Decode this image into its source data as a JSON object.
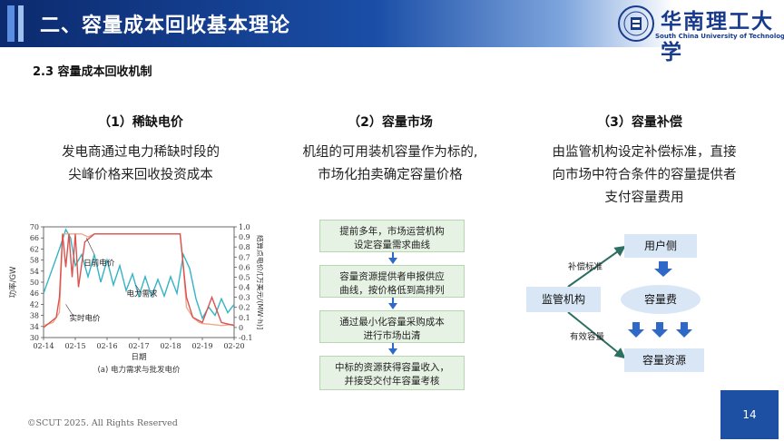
{
  "header": {
    "title": "二、容量成本回收基本理论",
    "logo_cn": "华南理工大学",
    "logo_en": "South China University of Technology"
  },
  "section_title": "2.3 容量成本回收机制",
  "columns": [
    {
      "heading": "（1）稀缺电价",
      "lines": [
        "发电商通过电力稀缺时段的",
        "尖峰价格来回收投资成本"
      ]
    },
    {
      "heading": "（2）容量市场",
      "lines": [
        "机组的可用装机容量作为标的,",
        "市场化拍卖确定容量价格"
      ]
    },
    {
      "heading": "（3）容量补偿",
      "lines": [
        "由监管机构设定补偿标准，直接",
        "向市场中符合条件的容量提供者",
        "支付容量费用"
      ]
    }
  ],
  "flow_steps": [
    [
      "提前多年，市场运营机构",
      "设定容量需求曲线"
    ],
    [
      "容量资源提供者申报供应",
      "曲线，按价格低到高排列"
    ],
    [
      "通过最小化容量采购成本",
      "进行市场出清"
    ],
    [
      "中标的资源获得容量收入，",
      "并接受交付年容量考核"
    ]
  ],
  "compensation": {
    "regulator": "监管机构",
    "user_side": "用户侧",
    "capacity_fee": "容量费",
    "capacity_resource": "容量资源",
    "label_standard": "补偿标准",
    "label_capacity": "有效容量"
  },
  "chart_data": {
    "type": "line",
    "x_ticks": [
      "02-14",
      "02-15",
      "02-16",
      "02-17",
      "02-18",
      "02-19",
      "02-20"
    ],
    "xlabel": "日期",
    "ylabel_left": "功率/GW",
    "ylabel_right": "结算点电价/[万美元/(MW·h)]",
    "y_left_ticks": [
      30,
      34,
      38,
      42,
      46,
      50,
      54,
      58,
      62,
      66,
      70
    ],
    "ylim_left": [
      30,
      70
    ],
    "y_right_ticks": [
      "-0.1",
      "0",
      "0.1",
      "0.2",
      "0.3",
      "0.4",
      "0.5",
      "0.6",
      "0.7",
      "0.8",
      "0.9",
      "1.0"
    ],
    "ylim_right": [
      -0.1,
      1.0
    ],
    "caption": "(a) 电力需求与批发电价",
    "annotations": [
      "日前电价",
      "电力需求",
      "实时电价"
    ],
    "series": [
      {
        "name": "电力需求",
        "color": "#35b3c4",
        "axis": "left",
        "x": [
          0,
          0.25,
          0.5,
          0.7,
          0.85,
          1.0,
          1.2,
          1.4,
          1.6,
          1.8,
          2.0,
          2.2,
          2.4,
          2.6,
          2.8,
          3.0,
          3.2,
          3.4,
          3.6,
          3.8,
          4.0,
          4.2,
          4.4,
          4.6,
          4.8,
          5.0,
          5.2,
          5.4,
          5.6,
          5.8,
          6.0
        ],
        "values": [
          46,
          54,
          62,
          69,
          66,
          56,
          60,
          52,
          60,
          50,
          58,
          49,
          56,
          47,
          53,
          45,
          52,
          45,
          51,
          45,
          52,
          46,
          60,
          55,
          44,
          37,
          41,
          38,
          44,
          39,
          42
        ]
      },
      {
        "name": "日前电价",
        "color": "#f0a98e",
        "axis": "right",
        "x": [
          0,
          0.3,
          0.5,
          0.6,
          0.7,
          0.8,
          1.0,
          1.2,
          1.4,
          1.6,
          2.0,
          2.5,
          3.0,
          3.5,
          4.0,
          4.3,
          4.4,
          4.5,
          4.7,
          4.9,
          5.0,
          5.3,
          5.6,
          6.0
        ],
        "values": [
          0.02,
          0.05,
          0.15,
          0.93,
          0.93,
          0.93,
          0.93,
          0.93,
          0.9,
          0.93,
          0.93,
          0.93,
          0.93,
          0.93,
          0.93,
          0.93,
          0.6,
          0.2,
          0.1,
          0.05,
          0.04,
          0.03,
          0.02,
          0.03
        ]
      },
      {
        "name": "实时电价",
        "color": "#d9534f",
        "axis": "right",
        "x": [
          0,
          0.2,
          0.4,
          0.5,
          0.6,
          0.7,
          0.8,
          0.9,
          1.0,
          1.1,
          1.3,
          1.6,
          2.0,
          2.4,
          2.8,
          3.2,
          3.6,
          4.0,
          4.3,
          4.5,
          4.7,
          5.0,
          5.3,
          5.6,
          6.0
        ],
        "values": [
          0.0,
          0.05,
          0.1,
          0.3,
          0.93,
          0.6,
          0.93,
          0.5,
          0.93,
          0.4,
          0.85,
          0.93,
          0.93,
          0.93,
          0.93,
          0.93,
          0.93,
          0.93,
          0.93,
          0.3,
          0.1,
          0.05,
          0.3,
          0.05,
          0.02
        ]
      }
    ]
  },
  "footer": {
    "copyright": "©SCUT 2025. All Rights Reserved",
    "page_number": "14"
  }
}
